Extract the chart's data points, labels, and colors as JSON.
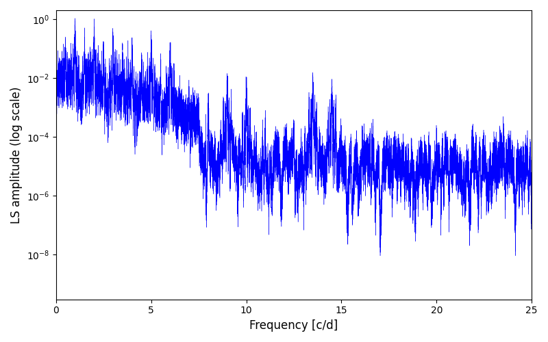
{
  "xlabel": "Frequency [c/d]",
  "ylabel": "LS amplitude (log scale)",
  "line_color": "#0000ff",
  "xlim": [
    0,
    25
  ],
  "ylim": [
    3e-10,
    2.0
  ],
  "freq_max": 25.0,
  "n_points": 25000,
  "background_color": "#ffffff",
  "figsize": [
    8.0,
    5.0
  ],
  "dpi": 100,
  "xticks": [
    0,
    5,
    10,
    15,
    20,
    25
  ]
}
